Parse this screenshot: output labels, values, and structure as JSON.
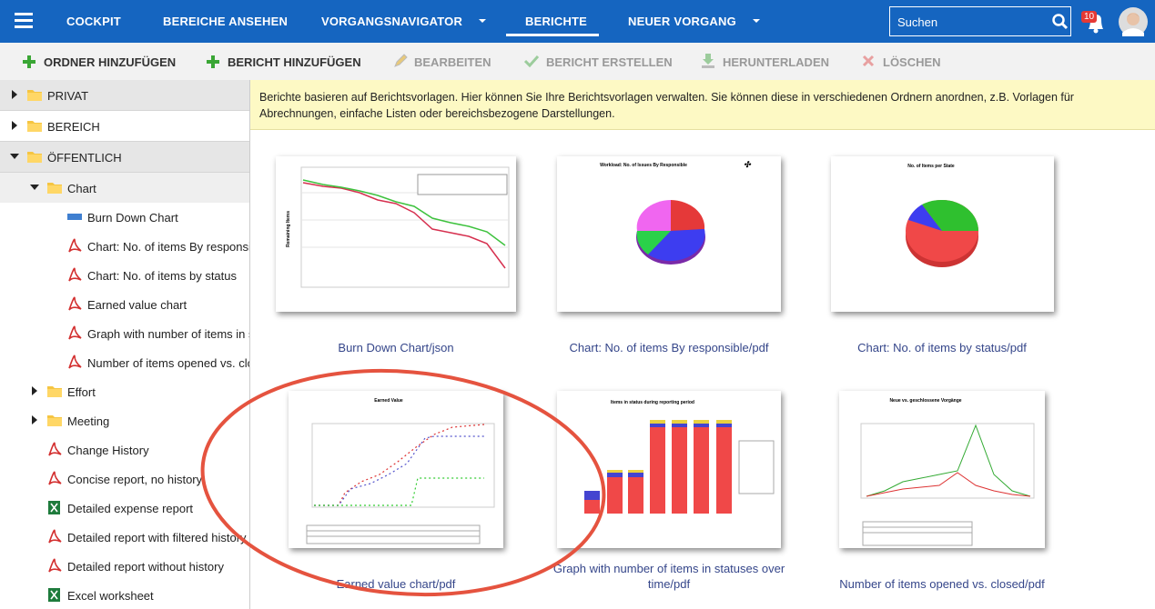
{
  "nav": {
    "items": [
      "COCKPIT",
      "BEREICHE ANSEHEN",
      "VORGANGSNAVIGATOR",
      "BERICHTE",
      "NEUER VORGANG"
    ],
    "search_placeholder": "Suchen",
    "notifications": 10
  },
  "toolbar": [
    "ORDNER HINZUFÜGEN",
    "BERICHT HINZUFÜGEN",
    "BEARBEITEN",
    "BERICHT ERSTELLEN",
    "HERUNTERLADEN",
    "LÖSCHEN"
  ],
  "tree": [
    "PRIVAT",
    "BEREICH",
    "ÖFFENTLICH",
    "Chart",
    "Burn Down Chart",
    "Chart: No. of items By responsible",
    "Chart: No. of items by status",
    "Earned value chart",
    "Graph with number of items in statuses over time",
    "Number of items opened vs. closed",
    "Effort",
    "Meeting",
    "Change History",
    "Concise report, no history",
    "Detailed expense report",
    "Detailed report with filtered history",
    "Detailed report without history",
    "Excel worksheet"
  ],
  "info": "Berichte basieren auf Berichtsvorlagen. Hier können Sie Ihre Berichtsvorlagen verwalten. Sie können diese in verschiedenen Ordnern anordnen, z.B. Vorlagen für Abrechnungen, einfache Listen oder bereichsbezogene Darstellungen.",
  "reports": [
    {
      "label": "Burn Down Chart/json",
      "thumb_title": "Remaining Items"
    },
    {
      "label": "Chart: No. of items By responsible/pdf",
      "thumb_title": "Workload: No. of Issues By Responsible"
    },
    {
      "label": "Chart: No. of items by status/pdf",
      "thumb_title": "No. of Items per State"
    },
    {
      "label": "Earned value chart/pdf",
      "thumb_title": "Earned Value"
    },
    {
      "label": "Graph with number of items in statuses over time/pdf",
      "thumb_title": "Items in status during reporting period"
    },
    {
      "label": "Number of items opened vs. closed/pdf",
      "thumb_title": "Neue vs. geschlossene Vorgänge"
    }
  ]
}
